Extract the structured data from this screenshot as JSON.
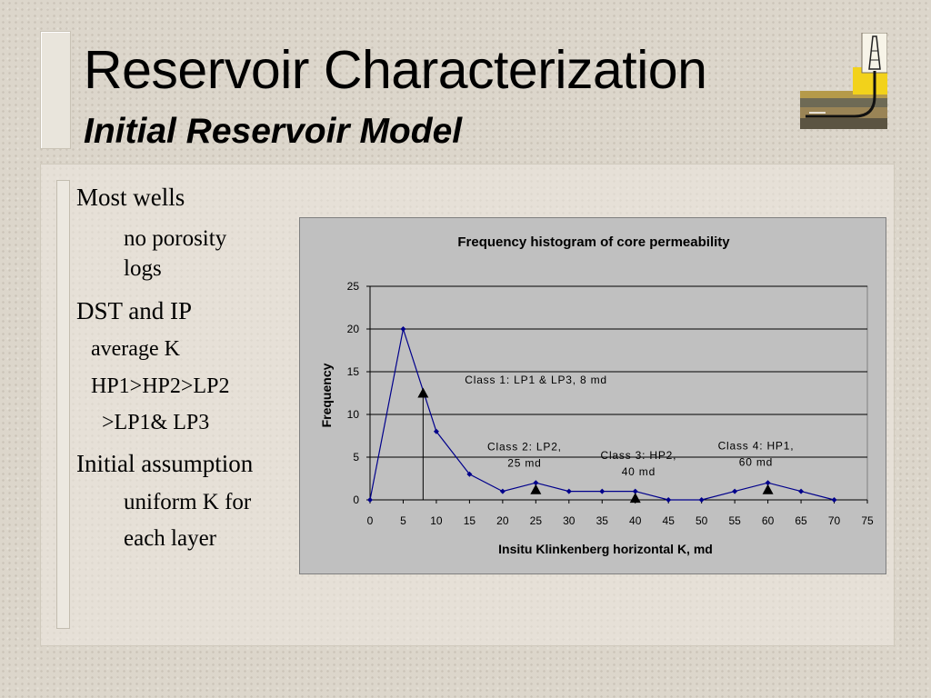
{
  "slide": {
    "title": "Reservoir Characterization",
    "subtitle": "Initial Reservoir Model",
    "logo_icon": "oil-derrick-reservoir-icon"
  },
  "bullets": [
    {
      "text": "Most wells"
    },
    {
      "text": "no porosity"
    },
    {
      "text": "logs"
    },
    {
      "text": "DST and IP"
    },
    {
      "text": "average K"
    },
    {
      "text": "HP1>HP2>LP2"
    },
    {
      "text": ">LP1& LP3"
    },
    {
      "text": "Initial assumption"
    },
    {
      "text": "uniform K for"
    },
    {
      "text": "each layer"
    }
  ],
  "chart_data": {
    "type": "line",
    "title": "Frequency histogram of core permeability",
    "xlabel": "Insitu Klinkenberg horizontal K, md",
    "ylabel": "Frequency",
    "xlim": [
      0,
      75
    ],
    "ylim": [
      0,
      25
    ],
    "xticks": [
      0,
      5,
      10,
      15,
      20,
      25,
      30,
      35,
      40,
      45,
      50,
      55,
      60,
      65,
      70,
      75
    ],
    "yticks": [
      0,
      5,
      10,
      15,
      20,
      25
    ],
    "grid": true,
    "background": "#c0c0c0",
    "series": [
      {
        "color": "#00008b",
        "points": [
          [
            0,
            0
          ],
          [
            5,
            20
          ],
          [
            10,
            8
          ],
          [
            15,
            3
          ],
          [
            20,
            1
          ],
          [
            25,
            2
          ],
          [
            30,
            1
          ],
          [
            35,
            1
          ],
          [
            40,
            1
          ],
          [
            45,
            0
          ],
          [
            50,
            0
          ],
          [
            55,
            1
          ],
          [
            60,
            2
          ],
          [
            65,
            1
          ],
          [
            70,
            0
          ]
        ]
      }
    ],
    "annotations": [
      {
        "lines": [
          "Class 1: LP1 & LP3, 8 md"
        ],
        "marker_x": 8,
        "marker_y": 12.5,
        "text_x": 14.3,
        "text_y": 13.6,
        "leader": true
      },
      {
        "lines": [
          "Class 2: LP2,",
          "25 md"
        ],
        "marker_x": 25,
        "marker_y": 1.2,
        "text_x": 23.3,
        "text_y": 5.8
      },
      {
        "lines": [
          "Class 3: HP2,",
          "40 md"
        ],
        "marker_x": 40,
        "marker_y": 0.2,
        "text_x": 40.5,
        "text_y": 4.8
      },
      {
        "lines": [
          "Class 4: HP1,",
          "60 md"
        ],
        "marker_x": 60,
        "marker_y": 1.2,
        "text_x": 58.2,
        "text_y": 5.9
      }
    ]
  }
}
